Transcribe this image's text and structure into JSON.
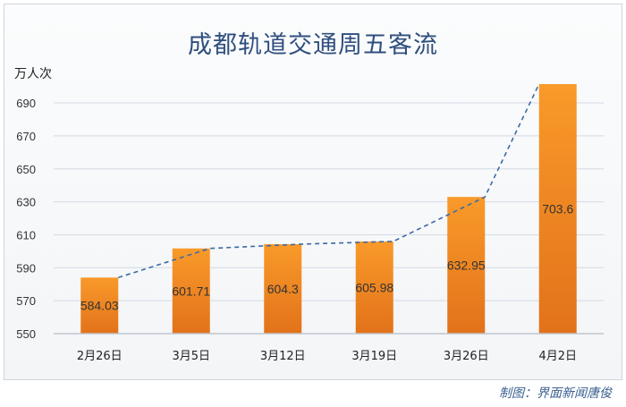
{
  "chart_data": {
    "type": "bar",
    "title": "成都轨道交通周五客流",
    "ylabel": "万人次",
    "categories": [
      "2月26日",
      "3月5日",
      "3月12日",
      "3月19日",
      "3月26日",
      "4月2日"
    ],
    "values": [
      584.03,
      601.71,
      604.3,
      605.98,
      632.95,
      703.6
    ],
    "data_labels": [
      "584.03",
      "601.71",
      "604.3",
      "605.98",
      "632.95",
      "703.6"
    ],
    "yticks": [
      550,
      570,
      590,
      610,
      630,
      650,
      670,
      690
    ],
    "ylim": [
      550,
      700
    ],
    "grid": true,
    "trendline": "dashed",
    "bar_color_top": "#f99a2a",
    "bar_color_bottom": "#e2721a",
    "line_color": "#3b6ba5"
  },
  "credit": "制图：界面新闻唐俊"
}
